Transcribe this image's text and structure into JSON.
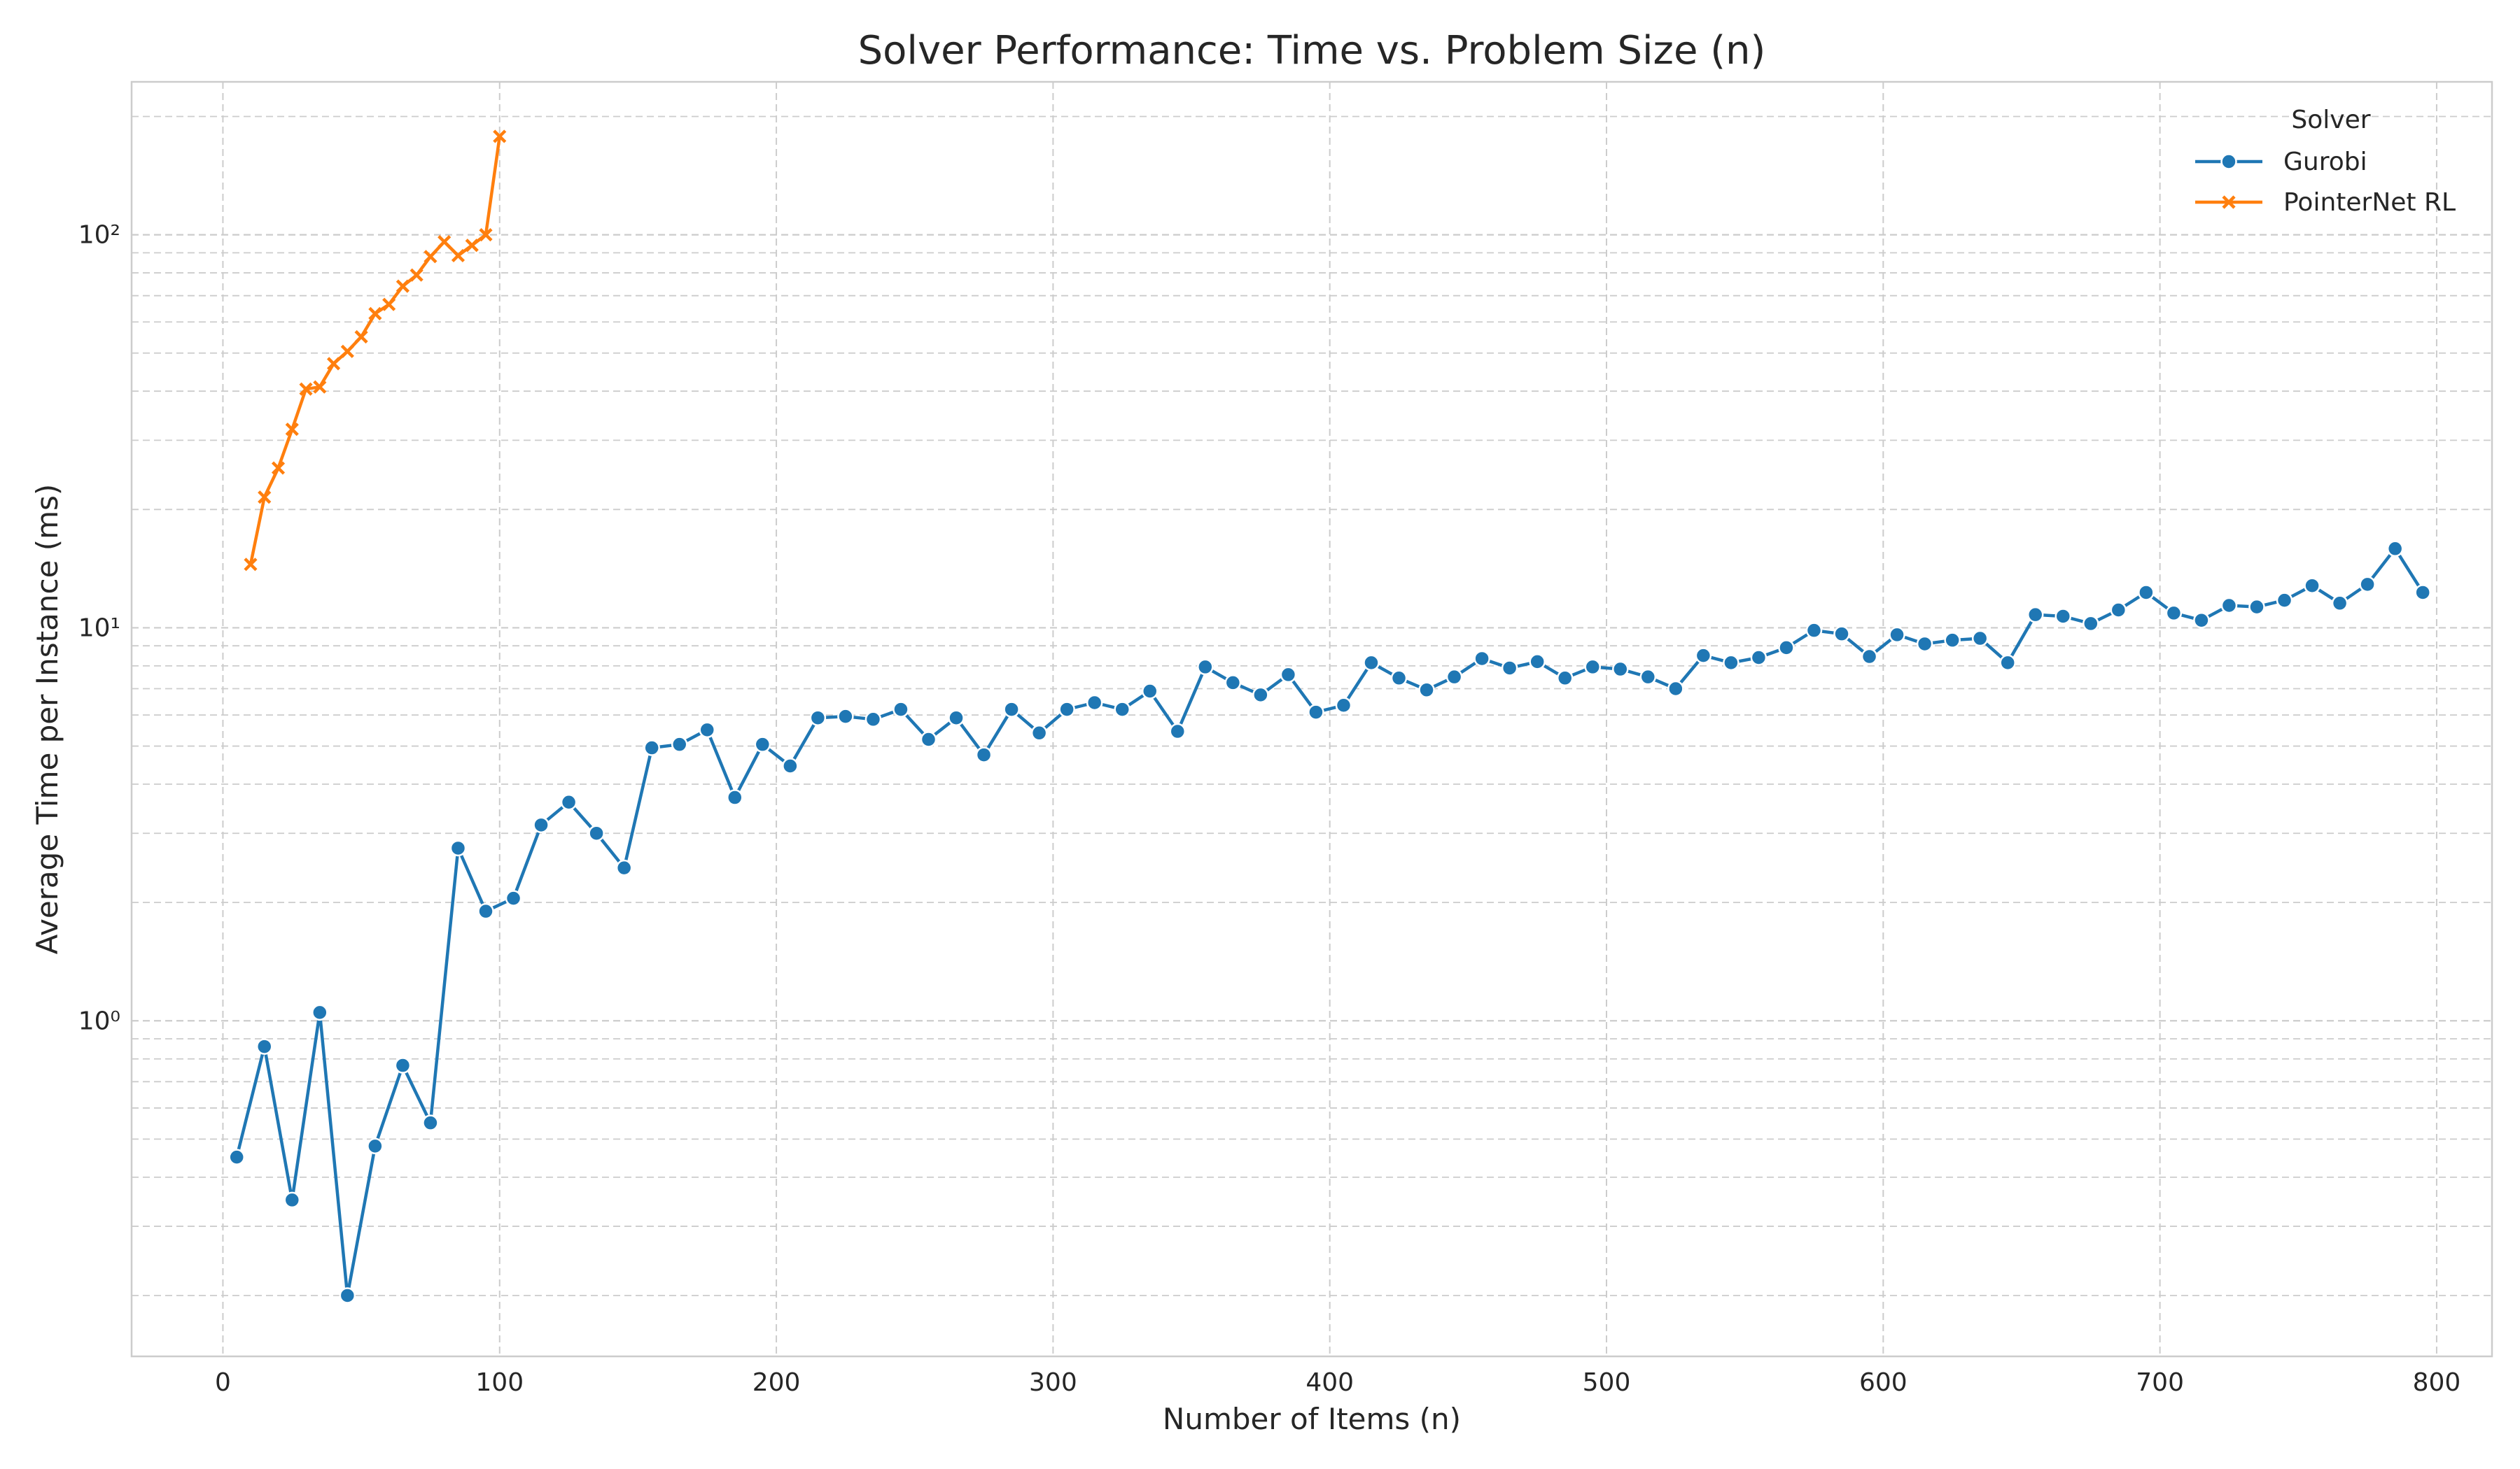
{
  "chart_data": {
    "type": "line",
    "title": "Solver Performance: Time vs. Problem Size (n)",
    "xlabel": "Number of Items (n)",
    "ylabel": "Average Time per Instance (ms)",
    "xlim": [
      -33,
      820
    ],
    "ylim": [
      0.14,
      245
    ],
    "yscale": "log",
    "x_ticks": [
      0,
      100,
      200,
      300,
      400,
      500,
      600,
      700,
      800
    ],
    "y_ticks": [
      1,
      10,
      100
    ],
    "y_tick_labels": [
      "10⁰",
      "10¹",
      "10²"
    ],
    "grid": true,
    "legend": {
      "title": "Solver",
      "position": "top-right"
    },
    "series": [
      {
        "name": "Gurobi",
        "color": "#1f77b4",
        "marker": "circle",
        "x": [
          5,
          15,
          25,
          35,
          45,
          55,
          65,
          75,
          85,
          95,
          105,
          115,
          125,
          135,
          145,
          155,
          165,
          175,
          185,
          195,
          205,
          215,
          225,
          235,
          245,
          255,
          265,
          275,
          285,
          295,
          305,
          315,
          325,
          335,
          345,
          355,
          365,
          375,
          385,
          395,
          405,
          415,
          425,
          435,
          445,
          455,
          465,
          475,
          485,
          495,
          505,
          515,
          525,
          535,
          545,
          555,
          565,
          575,
          585,
          595,
          605,
          615,
          625,
          635,
          645,
          655,
          665,
          675,
          685,
          695,
          705,
          715,
          725,
          735,
          745,
          755,
          765,
          775,
          785,
          795
        ],
        "y": [
          0.45,
          0.86,
          0.35,
          1.05,
          0.2,
          0.48,
          0.77,
          0.55,
          2.75,
          1.9,
          2.05,
          3.15,
          3.6,
          3.0,
          2.45,
          4.95,
          5.05,
          5.5,
          3.7,
          5.05,
          4.45,
          5.9,
          5.95,
          5.85,
          6.2,
          5.2,
          5.9,
          4.75,
          6.2,
          5.4,
          6.2,
          6.45,
          6.2,
          6.9,
          5.45,
          7.95,
          7.25,
          6.75,
          7.6,
          6.1,
          6.35,
          8.15,
          7.45,
          6.95,
          7.5,
          8.35,
          7.9,
          8.2,
          7.45,
          7.95,
          7.85,
          7.5,
          7.0,
          8.5,
          8.15,
          8.4,
          8.9,
          9.85,
          9.65,
          8.45,
          9.6,
          9.1,
          9.3,
          9.4,
          8.15,
          10.8,
          10.7,
          10.25,
          11.1,
          12.3,
          10.9,
          10.45,
          11.4,
          11.3,
          11.75,
          12.8,
          11.55,
          12.9,
          15.9,
          12.3
        ]
      },
      {
        "name": "PointerNet RL",
        "color": "#ff7f0e",
        "marker": "x",
        "x": [
          10,
          15,
          20,
          25,
          30,
          35,
          40,
          45,
          50,
          55,
          60,
          65,
          70,
          75,
          80,
          85,
          90,
          95,
          100
        ],
        "y": [
          14.5,
          21.5,
          25.5,
          32,
          40.5,
          41,
          47,
          50.5,
          55,
          63,
          66.5,
          74,
          79,
          88,
          96,
          88.5,
          94,
          100,
          178
        ]
      }
    ]
  }
}
